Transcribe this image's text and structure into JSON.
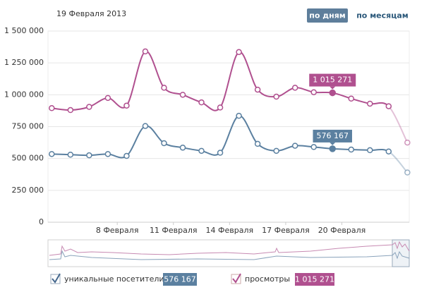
{
  "date": "19 Февраля 2013",
  "buttons": [
    "по дням",
    "по месяцам"
  ],
  "chart_data": {
    "type": "line",
    "x": [
      4.5,
      5.5,
      6.5,
      7.5,
      8.5,
      9.5,
      10.5,
      11.5,
      12.5,
      13.5,
      14.5,
      15.5,
      16.5,
      17.5,
      18.5,
      19.5,
      20.5,
      21.5,
      22.5,
      23.5
    ],
    "xlim": [
      4.3,
      23.6
    ],
    "xticks": [
      {
        "value": 8,
        "label": "8 Февраля"
      },
      {
        "value": 11,
        "label": "11 Февраля"
      },
      {
        "value": 14,
        "label": "14 Февраля"
      },
      {
        "value": 17,
        "label": "17 Февраля"
      },
      {
        "value": 20,
        "label": "20 Февраля"
      }
    ],
    "ylim": [
      0,
      1500000
    ],
    "yticks": [
      {
        "value": 0,
        "label": "0"
      },
      {
        "value": 250000,
        "label": "250 000"
      },
      {
        "value": 500000,
        "label": "500 000"
      },
      {
        "value": 750000,
        "label": "750 000"
      },
      {
        "value": 1000000,
        "label": "1 000 000"
      },
      {
        "value": 1250000,
        "label": "1 250 000"
      },
      {
        "value": 1500000,
        "label": "1 500 000"
      }
    ],
    "grid": true,
    "series": [
      {
        "name": "уникальные посетители",
        "color": "#5b80a0",
        "values": [
          535000,
          530000,
          525000,
          535000,
          520000,
          755000,
          620000,
          585000,
          560000,
          545000,
          835000,
          615000,
          560000,
          600000,
          590000,
          576167,
          570000,
          565000,
          555000,
          390000
        ],
        "value_labels": [
          null,
          null,
          null,
          null,
          null,
          null,
          null,
          null,
          null,
          null,
          null,
          null,
          null,
          null,
          null,
          "576 167",
          null,
          null,
          null,
          null
        ]
      },
      {
        "name": "просмотры",
        "color": "#b0508f",
        "values": [
          895000,
          880000,
          905000,
          975000,
          915000,
          1340000,
          1055000,
          1000000,
          940000,
          900000,
          1335000,
          1040000,
          985000,
          1055000,
          1020000,
          1015271,
          970000,
          930000,
          910000,
          625000
        ],
        "value_labels": [
          null,
          null,
          null,
          null,
          null,
          null,
          null,
          null,
          null,
          null,
          null,
          null,
          null,
          null,
          null,
          "1 015 271",
          null,
          null,
          null,
          null
        ]
      }
    ]
  }
}
